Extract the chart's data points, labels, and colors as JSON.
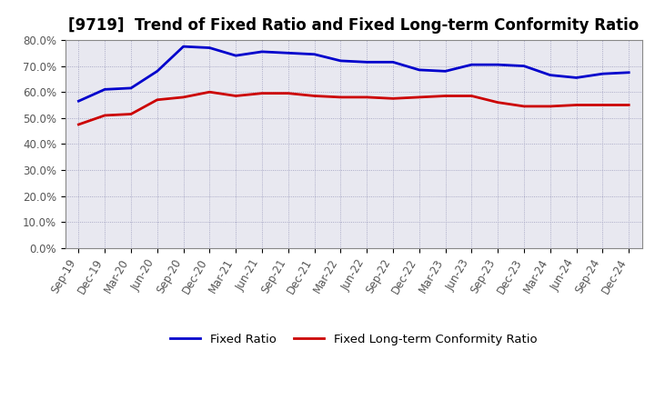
{
  "title": "[9719]  Trend of Fixed Ratio and Fixed Long-term Conformity Ratio",
  "x_labels": [
    "Sep-19",
    "Dec-19",
    "Mar-20",
    "Jun-20",
    "Sep-20",
    "Dec-20",
    "Mar-21",
    "Jun-21",
    "Sep-21",
    "Dec-21",
    "Mar-22",
    "Jun-22",
    "Sep-22",
    "Dec-22",
    "Mar-23",
    "Jun-23",
    "Sep-23",
    "Dec-23",
    "Mar-24",
    "Jun-24",
    "Sep-24",
    "Dec-24"
  ],
  "fixed_ratio": [
    56.5,
    61.0,
    61.5,
    68.0,
    77.5,
    77.0,
    74.0,
    75.5,
    75.0,
    74.5,
    72.0,
    71.5,
    71.5,
    68.5,
    68.0,
    70.5,
    70.5,
    70.0,
    66.5,
    65.5,
    67.0,
    67.5
  ],
  "fixed_lt_ratio": [
    47.5,
    51.0,
    51.5,
    57.0,
    58.0,
    60.0,
    58.5,
    59.5,
    59.5,
    58.5,
    58.0,
    58.0,
    57.5,
    58.0,
    58.5,
    58.5,
    56.0,
    54.5,
    54.5,
    55.0,
    55.0,
    55.0
  ],
  "fixed_ratio_color": "#0000CC",
  "fixed_lt_ratio_color": "#CC0000",
  "ylim": [
    0,
    80
  ],
  "yticks": [
    0,
    10,
    20,
    30,
    40,
    50,
    60,
    70,
    80
  ],
  "ytick_labels": [
    "0.0%",
    "10.0%",
    "20.0%",
    "30.0%",
    "40.0%",
    "50.0%",
    "60.0%",
    "70.0%",
    "80.0%"
  ],
  "grid_color": "#9999bb",
  "bg_color": "#ffffff",
  "plot_bg_color": "#e8e8f0",
  "legend_fixed_ratio": "Fixed Ratio",
  "legend_fixed_lt_ratio": "Fixed Long-term Conformity Ratio",
  "title_fontsize": 12,
  "axis_fontsize": 8.5,
  "legend_fontsize": 9.5,
  "ytick_color": "#555555",
  "xtick_color": "#555555"
}
